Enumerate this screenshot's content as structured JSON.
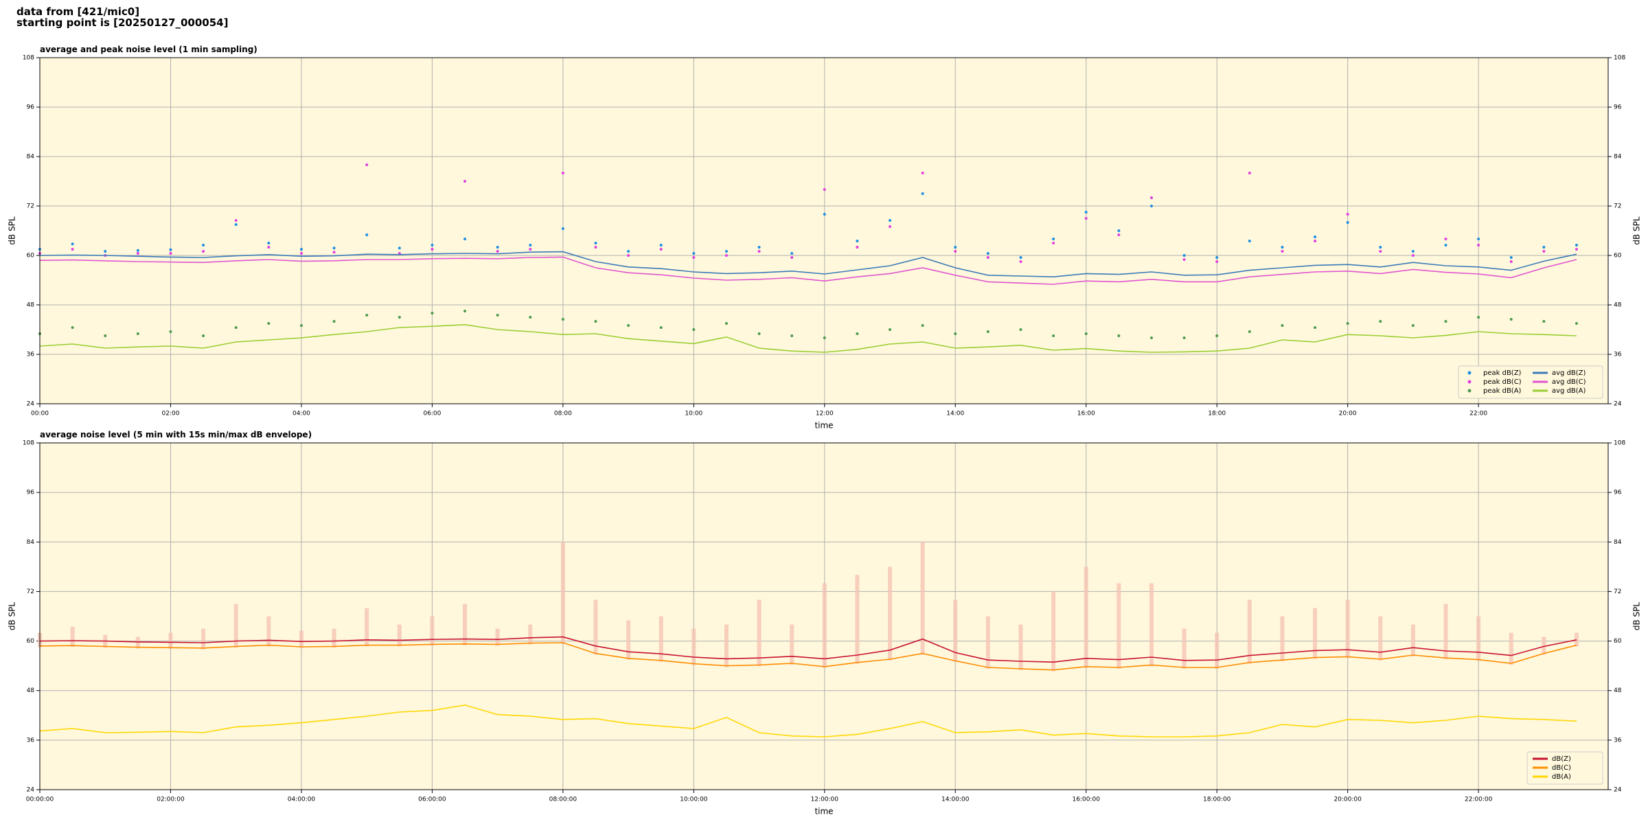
{
  "header": {
    "line1": "data from [421/mic0]",
    "line2": "starting point is [20250127_000054]"
  },
  "chart_data": [
    {
      "type": "line",
      "title": "average and peak noise level (1 min sampling)",
      "x_label": "time",
      "y_label": "dB SPL",
      "xlim": [
        "00:00",
        "23:59"
      ],
      "xticks": [
        "00:00",
        "02:00",
        "04:00",
        "06:00",
        "08:00",
        "10:00",
        "12:00",
        "14:00",
        "16:00",
        "18:00",
        "20:00",
        "22:00"
      ],
      "ylim": [
        24,
        108
      ],
      "yticks": [
        24,
        36,
        48,
        60,
        72,
        84,
        96,
        108
      ],
      "grid": true,
      "legend": "lower right",
      "background": "#fff8dc",
      "x": [
        "00:00",
        "00:30",
        "01:00",
        "01:30",
        "02:00",
        "02:30",
        "03:00",
        "03:30",
        "04:00",
        "04:30",
        "05:00",
        "05:30",
        "06:00",
        "06:30",
        "07:00",
        "07:30",
        "08:00",
        "08:30",
        "09:00",
        "09:30",
        "10:00",
        "10:30",
        "11:00",
        "11:30",
        "12:00",
        "12:30",
        "13:00",
        "13:30",
        "14:00",
        "14:30",
        "15:00",
        "15:30",
        "16:00",
        "16:30",
        "17:00",
        "17:30",
        "18:00",
        "18:30",
        "19:00",
        "19:30",
        "20:00",
        "20:30",
        "21:00",
        "21:30",
        "22:00",
        "22:30",
        "23:00",
        "23:30"
      ],
      "series": [
        {
          "name": "peak dB(Z)",
          "kind": "scatter",
          "color": "#1f8fe0",
          "values": [
            61.5,
            62.8,
            61.0,
            61.2,
            61.4,
            62.5,
            67.5,
            63.0,
            61.5,
            61.8,
            65.0,
            61.8,
            62.5,
            64.0,
            62.0,
            62.5,
            66.5,
            63.0,
            61.0,
            62.5,
            60.5,
            61.0,
            62.0,
            60.5,
            70.0,
            63.5,
            68.5,
            75.0,
            62.0,
            60.5,
            59.5,
            64.0,
            70.5,
            66.0,
            72.0,
            60.0,
            59.5,
            63.5,
            62.0,
            64.5,
            68.0,
            62.0,
            61.0,
            62.5,
            64.0,
            59.5,
            62.0,
            62.5
          ]
        },
        {
          "name": "peak dB(C)",
          "kind": "scatter",
          "color": "#e040e0",
          "values": [
            60.5,
            61.5,
            60.0,
            60.5,
            60.5,
            61.0,
            68.5,
            62.0,
            60.5,
            60.8,
            82.0,
            60.5,
            61.5,
            78.0,
            61.0,
            61.5,
            80.0,
            62.0,
            60.0,
            61.5,
            59.5,
            60.0,
            61.0,
            59.5,
            76.0,
            62.0,
            67.0,
            80.0,
            61.0,
            59.5,
            58.5,
            63.0,
            69.0,
            65.0,
            74.0,
            59.0,
            58.5,
            80.0,
            61.0,
            63.5,
            70.0,
            61.0,
            60.0,
            64.0,
            62.5,
            58.5,
            61.0,
            61.5
          ]
        },
        {
          "name": "peak dB(A)",
          "kind": "scatter",
          "color": "#4e9a4e",
          "values": [
            41.0,
            42.5,
            40.5,
            41.0,
            41.5,
            40.5,
            42.5,
            43.5,
            43.0,
            44.0,
            45.5,
            45.0,
            46.0,
            46.5,
            45.5,
            45.0,
            44.5,
            44.0,
            43.0,
            42.5,
            42.0,
            43.5,
            41.0,
            40.5,
            40.0,
            41.0,
            42.0,
            43.0,
            41.0,
            41.5,
            42.0,
            40.5,
            41.0,
            40.5,
            40.0,
            40.0,
            40.5,
            41.5,
            43.0,
            42.5,
            43.5,
            44.0,
            43.0,
            44.0,
            45.0,
            44.5,
            44.0,
            43.5
          ]
        },
        {
          "name": "avg dB(Z)",
          "kind": "line",
          "color": "#3a7ab8",
          "values": [
            60.0,
            60.1,
            60.0,
            59.8,
            59.6,
            59.5,
            59.9,
            60.2,
            59.8,
            59.9,
            60.3,
            60.2,
            60.4,
            60.5,
            60.4,
            60.8,
            60.9,
            58.5,
            57.2,
            56.8,
            56.0,
            55.6,
            55.8,
            56.2,
            55.5,
            56.5,
            57.5,
            59.5,
            57.0,
            55.2,
            55.0,
            54.8,
            55.6,
            55.4,
            56.0,
            55.2,
            55.3,
            56.4,
            57.0,
            57.6,
            57.8,
            57.2,
            58.3,
            57.5,
            57.2,
            56.4,
            58.6,
            60.3
          ]
        },
        {
          "name": "avg dB(C)",
          "kind": "line",
          "color": "#e055d0",
          "values": [
            58.8,
            58.9,
            58.7,
            58.5,
            58.4,
            58.3,
            58.7,
            59.0,
            58.6,
            58.7,
            59.0,
            59.0,
            59.2,
            59.3,
            59.2,
            59.5,
            59.6,
            57.0,
            55.8,
            55.3,
            54.5,
            54.0,
            54.2,
            54.6,
            53.8,
            54.8,
            55.6,
            57.0,
            55.2,
            53.6,
            53.3,
            53.0,
            53.8,
            53.6,
            54.2,
            53.6,
            53.6,
            54.8,
            55.4,
            56.0,
            56.2,
            55.6,
            56.6,
            55.9,
            55.5,
            54.6,
            57.0,
            59.0
          ]
        },
        {
          "name": "avg dB(A)",
          "kind": "line",
          "color": "#9acd32",
          "values": [
            38.0,
            38.5,
            37.5,
            37.8,
            38.0,
            37.5,
            39.0,
            39.5,
            40.0,
            40.8,
            41.5,
            42.5,
            42.8,
            43.2,
            42.0,
            41.5,
            40.8,
            41.0,
            39.8,
            39.2,
            38.6,
            40.2,
            37.5,
            36.8,
            36.5,
            37.2,
            38.5,
            39.0,
            37.5,
            37.8,
            38.2,
            37.0,
            37.4,
            36.8,
            36.5,
            36.6,
            36.8,
            37.5,
            39.5,
            39.0,
            40.8,
            40.5,
            40.0,
            40.6,
            41.5,
            41.0,
            40.8,
            40.5
          ]
        }
      ]
    },
    {
      "type": "line",
      "title": "average noise level (5 min with 15s min/max dB envelope)",
      "x_label": "time",
      "y_label": "dB SPL",
      "xlim": [
        "00:00:00",
        "23:59:00"
      ],
      "xticks": [
        "00:00:00",
        "02:00:00",
        "04:00:00",
        "06:00:00",
        "08:00:00",
        "10:00:00",
        "12:00:00",
        "14:00:00",
        "16:00:00",
        "18:00:00",
        "20:00:00",
        "22:00:00"
      ],
      "ylim": [
        24,
        108
      ],
      "yticks": [
        24,
        36,
        48,
        60,
        72,
        84,
        96,
        108
      ],
      "grid": true,
      "legend": "lower right",
      "background": "#fff8dc",
      "x": [
        "00:00:00",
        "00:30:00",
        "01:00:00",
        "01:30:00",
        "02:00:00",
        "02:30:00",
        "03:00:00",
        "03:30:00",
        "04:00:00",
        "04:30:00",
        "05:00:00",
        "05:30:00",
        "06:00:00",
        "06:30:00",
        "07:00:00",
        "07:30:00",
        "08:00:00",
        "08:30:00",
        "09:00:00",
        "09:30:00",
        "10:00:00",
        "10:30:00",
        "11:00:00",
        "11:30:00",
        "12:00:00",
        "12:30:00",
        "13:00:00",
        "13:30:00",
        "14:00:00",
        "14:30:00",
        "15:00:00",
        "15:30:00",
        "16:00:00",
        "16:30:00",
        "17:00:00",
        "17:30:00",
        "18:00:00",
        "18:30:00",
        "19:00:00",
        "19:30:00",
        "20:00:00",
        "20:30:00",
        "21:00:00",
        "21:30:00",
        "22:00:00",
        "22:30:00",
        "23:00:00",
        "23:30:00"
      ],
      "envelope": {
        "color": "#f5c4b4",
        "min": [
          58.5,
          58.6,
          58.4,
          58.2,
          58.1,
          58.0,
          58.4,
          58.7,
          58.3,
          58.4,
          58.7,
          58.7,
          58.9,
          59.0,
          58.9,
          59.2,
          59.3,
          56.7,
          55.5,
          55.0,
          54.2,
          53.7,
          53.9,
          54.3,
          53.5,
          54.5,
          55.3,
          56.7,
          54.9,
          53.3,
          53.0,
          52.7,
          53.5,
          53.3,
          53.9,
          53.3,
          53.3,
          54.5,
          55.1,
          55.7,
          55.9,
          55.3,
          56.3,
          55.6,
          55.2,
          54.3,
          56.7,
          58.7
        ],
        "max": [
          62.0,
          63.5,
          61.5,
          61.0,
          62.0,
          63.0,
          69.0,
          66.0,
          62.5,
          63.0,
          68.0,
          64.0,
          66.0,
          69.0,
          63.0,
          64.0,
          84.0,
          70.0,
          65.0,
          66.0,
          63.0,
          64.0,
          70.0,
          64.0,
          74.0,
          76.0,
          78.0,
          84.0,
          70.0,
          66.0,
          64.0,
          72.0,
          78.0,
          74.0,
          74.0,
          63.0,
          62.0,
          70.0,
          66.0,
          68.0,
          70.0,
          66.0,
          64.0,
          69.0,
          66.0,
          62.0,
          61.0,
          62.0
        ]
      },
      "series": [
        {
          "name": "dB(Z)",
          "kind": "line",
          "color": "#c8102e",
          "values": [
            60.0,
            60.1,
            60.0,
            59.8,
            59.7,
            59.6,
            60.0,
            60.2,
            59.9,
            60.0,
            60.3,
            60.2,
            60.4,
            60.5,
            60.4,
            60.8,
            61.0,
            58.8,
            57.4,
            56.9,
            56.1,
            55.7,
            55.9,
            56.3,
            55.7,
            56.6,
            57.8,
            60.5,
            57.2,
            55.4,
            55.1,
            54.9,
            55.8,
            55.5,
            56.1,
            55.3,
            55.4,
            56.5,
            57.1,
            57.7,
            57.9,
            57.3,
            58.4,
            57.6,
            57.3,
            56.5,
            58.7,
            60.3
          ]
        },
        {
          "name": "dB(C)",
          "kind": "line",
          "color": "#ff8c00",
          "values": [
            58.8,
            58.9,
            58.7,
            58.5,
            58.4,
            58.3,
            58.7,
            59.0,
            58.6,
            58.7,
            59.0,
            59.0,
            59.2,
            59.3,
            59.2,
            59.5,
            59.6,
            57.0,
            55.8,
            55.3,
            54.5,
            54.0,
            54.2,
            54.6,
            53.8,
            54.8,
            55.6,
            57.0,
            55.2,
            53.6,
            53.3,
            53.0,
            53.8,
            53.6,
            54.2,
            53.6,
            53.6,
            54.8,
            55.4,
            56.0,
            56.2,
            55.6,
            56.6,
            55.9,
            55.5,
            54.6,
            57.0,
            59.0
          ]
        },
        {
          "name": "dB(A)",
          "kind": "line",
          "color": "#ffd700",
          "values": [
            38.2,
            38.8,
            37.8,
            37.9,
            38.1,
            37.8,
            39.2,
            39.6,
            40.2,
            41.0,
            41.8,
            42.8,
            43.2,
            44.5,
            42.2,
            41.8,
            41.0,
            41.2,
            40.0,
            39.4,
            38.8,
            41.5,
            37.8,
            37.0,
            36.8,
            37.4,
            38.8,
            40.5,
            37.8,
            38.0,
            38.5,
            37.2,
            37.6,
            37.0,
            36.8,
            36.8,
            37.0,
            37.8,
            39.8,
            39.2,
            41.0,
            40.8,
            40.2,
            40.8,
            41.8,
            41.2,
            41.0,
            40.6
          ]
        }
      ]
    }
  ]
}
